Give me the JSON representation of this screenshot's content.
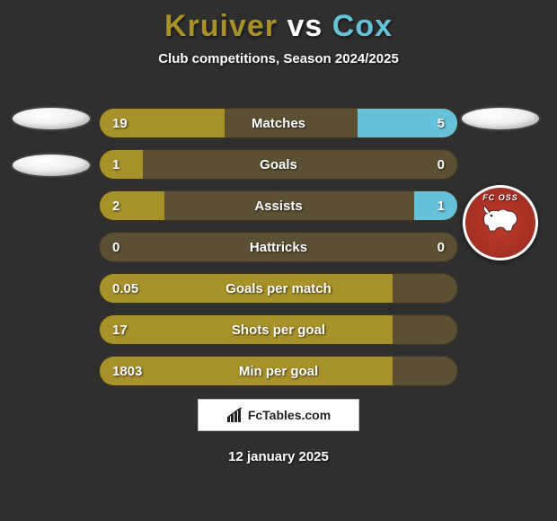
{
  "header": {
    "player1_name": "Kruiver",
    "player2_name": "Cox",
    "vs_word": "vs",
    "player1_color": "#a79129",
    "player2_color": "#66c2d9",
    "subtitle": "Club competitions, Season 2024/2025"
  },
  "stats": {
    "bar_bg": "#5c5034",
    "left_color": "#a79129",
    "right_color": "#66c2d9",
    "rows": [
      {
        "label": "Matches",
        "left_val": "19",
        "right_val": "5",
        "left_pct": 35,
        "right_pct": 28
      },
      {
        "label": "Goals",
        "left_val": "1",
        "right_val": "0",
        "left_pct": 12,
        "right_pct": 0
      },
      {
        "label": "Assists",
        "left_val": "2",
        "right_val": "1",
        "left_pct": 18,
        "right_pct": 12
      },
      {
        "label": "Hattricks",
        "left_val": "0",
        "right_val": "0",
        "left_pct": 0,
        "right_pct": 0
      },
      {
        "label": "Goals per match",
        "left_val": "0.05",
        "right_val": "",
        "left_pct": 82,
        "right_pct": 0
      },
      {
        "label": "Shots per goal",
        "left_val": "17",
        "right_val": "",
        "left_pct": 82,
        "right_pct": 0
      },
      {
        "label": "Min per goal",
        "left_val": "1803",
        "right_val": "",
        "left_pct": 82,
        "right_pct": 0
      }
    ]
  },
  "right_crest_text": "FC OSS",
  "footer": {
    "brand": "FcTables.com",
    "date": "12 january 2025"
  },
  "colors": {
    "page_bg": "#2f2f2f"
  }
}
